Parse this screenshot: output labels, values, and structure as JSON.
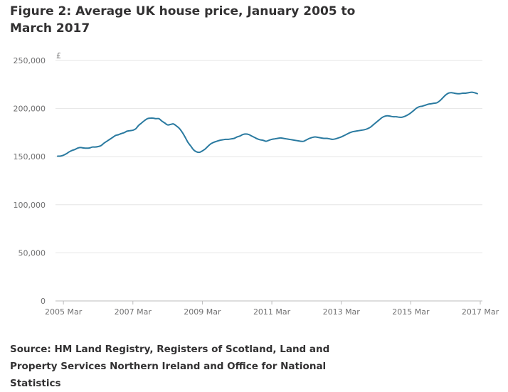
{
  "chart_data": {
    "type": "line",
    "title": "Figure 2: Average UK house price, January 2005 to March 2017",
    "ylabel": "£",
    "xlabel": "",
    "ylim": [
      0,
      250000
    ],
    "y_ticks": [
      0,
      50000,
      100000,
      150000,
      200000,
      250000
    ],
    "y_tick_labels": [
      "0",
      "50,000",
      "100,000",
      "150,000",
      "200,000",
      "250,000"
    ],
    "x_ticks": [
      2,
      26,
      50,
      74,
      98,
      122,
      146
    ],
    "x_tick_labels": [
      "2005 Mar",
      "2007 Mar",
      "2009 Mar",
      "2011 Mar",
      "2013 Mar",
      "2015 Mar",
      "2017 Mar"
    ],
    "x_range": [
      0,
      146
    ],
    "grid": true,
    "legend": "none",
    "color": "#2a7aa0",
    "series": [
      {
        "x_start": "2005 Jan",
        "frequency": "monthly",
        "values": [
          150500,
          150600,
          151500,
          153000,
          155000,
          156500,
          157500,
          159000,
          159500,
          159000,
          158800,
          159000,
          160000,
          160000,
          160500,
          161500,
          164000,
          166000,
          168000,
          170000,
          172000,
          172800,
          174000,
          175000,
          176500,
          177000,
          177500,
          179000,
          182500,
          185000,
          187500,
          189500,
          190000,
          190000,
          189500,
          189500,
          187000,
          185000,
          183000,
          183500,
          184000,
          182000,
          179500,
          175500,
          170500,
          165000,
          161000,
          157000,
          155000,
          154500,
          156000,
          158000,
          161000,
          163500,
          165000,
          166000,
          167000,
          167500,
          168000,
          168000,
          168500,
          169000,
          170500,
          171500,
          173000,
          173500,
          173000,
          171500,
          170000,
          168500,
          167500,
          167000,
          166000,
          167000,
          168000,
          168500,
          169000,
          169500,
          169000,
          168500,
          168000,
          167500,
          167000,
          166500,
          166000,
          166000,
          167500,
          169000,
          170000,
          170500,
          170000,
          169500,
          169000,
          169000,
          168500,
          168000,
          168500,
          169500,
          170500,
          172000,
          173500,
          175000,
          176000,
          176500,
          177000,
          177500,
          178000,
          179000,
          180500,
          183000,
          185500,
          188000,
          190500,
          192000,
          192500,
          192000,
          191500,
          191500,
          191000,
          191000,
          192000,
          193500,
          195500,
          198000,
          200500,
          202000,
          202500,
          203500,
          204500,
          205000,
          205500,
          206000,
          208000,
          211000,
          214000,
          216000,
          216500,
          216000,
          215500,
          215500,
          216000,
          216000,
          216500,
          217000,
          216500,
          215500
        ]
      }
    ],
    "source": "Source: HM Land Registry, Registers of Scotland, Land and Property Services Northern Ireland and Office for National Statistics"
  }
}
